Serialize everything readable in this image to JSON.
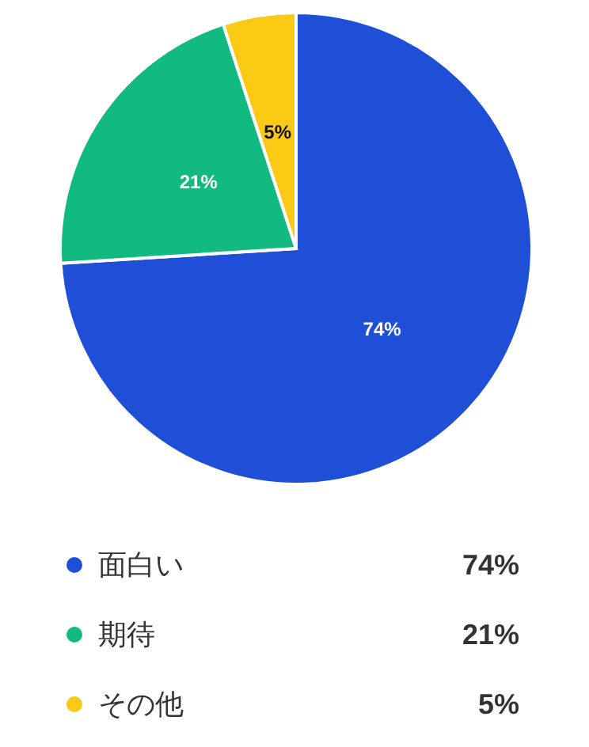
{
  "chart_data": {
    "type": "pie",
    "categories": [
      "面白い",
      "期待",
      "その他"
    ],
    "values": [
      74,
      21,
      5
    ],
    "colors": [
      "#1f4fd6",
      "#12b981",
      "#f9c914"
    ],
    "value_labels": [
      "74%",
      "21%",
      "5%"
    ],
    "legend": "bottom"
  }
}
